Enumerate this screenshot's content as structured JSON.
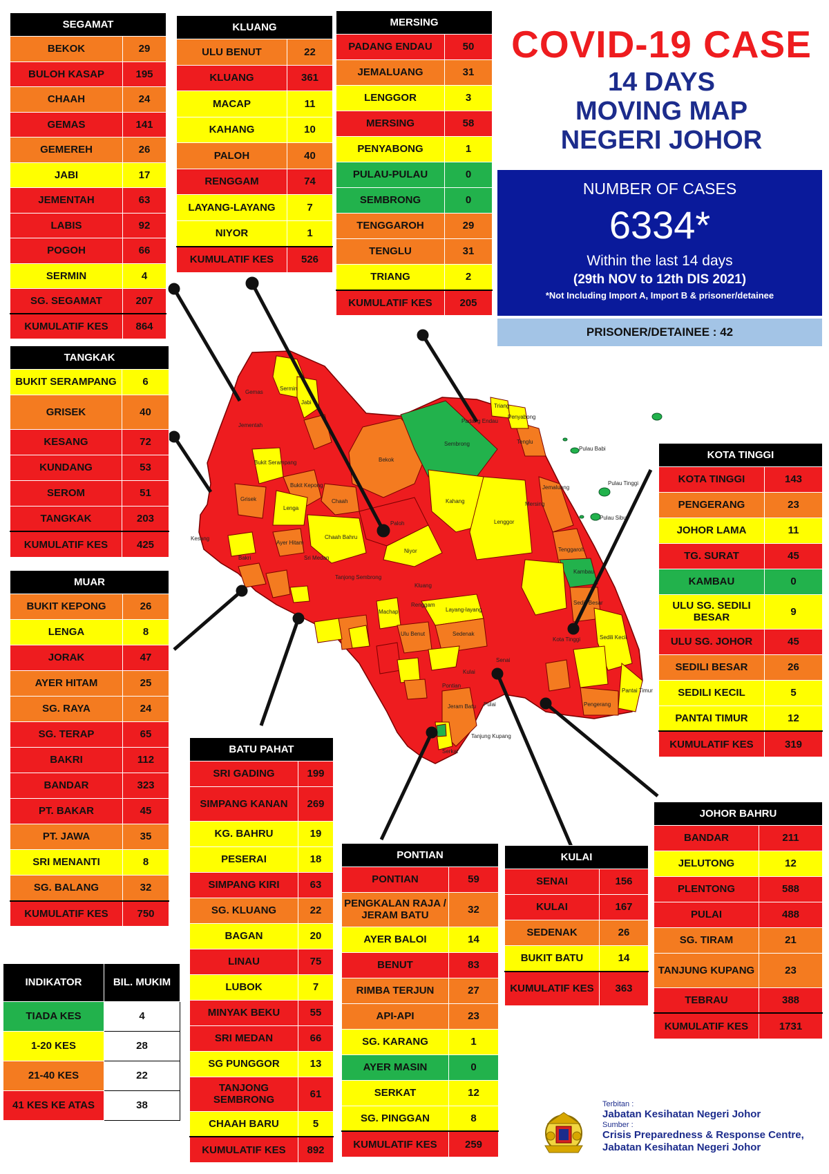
{
  "header": {
    "title_line1": "COVID-19 CASE",
    "title_line2": "14 DAYS",
    "title_line3": "MOVING MAP",
    "title_line4": "NEGERI JOHOR"
  },
  "summary": {
    "label": "NUMBER OF CASES",
    "total": "6334*",
    "within": "Within the last 14 days",
    "range": "(29th NOV to 12th DIS 2021)",
    "note": "*Not Including Import A, Import B & prisoner/detainee",
    "prisoner": "PRISONER/DETAINEE : 42"
  },
  "colors": {
    "red": "#ee1c1f",
    "orange": "#f47b20",
    "yellow": "#ffff00",
    "green": "#22b24c",
    "navy": "#0a1a9b",
    "title_blue": "#1c2c8c"
  },
  "districts": {
    "segamat": {
      "title": "SEGAMAT",
      "rows": [
        {
          "name": "BEKOK",
          "value": "29",
          "level": "orange"
        },
        {
          "name": "BULOH KASAP",
          "value": "195",
          "level": "red"
        },
        {
          "name": "CHAAH",
          "value": "24",
          "level": "orange"
        },
        {
          "name": "GEMAS",
          "value": "141",
          "level": "red"
        },
        {
          "name": "GEMEREH",
          "value": "26",
          "level": "orange"
        },
        {
          "name": "JABI",
          "value": "17",
          "level": "yellow"
        },
        {
          "name": "JEMENTAH",
          "value": "63",
          "level": "red"
        },
        {
          "name": "LABIS",
          "value": "92",
          "level": "red"
        },
        {
          "name": "POGOH",
          "value": "66",
          "level": "red"
        },
        {
          "name": "SERMIN",
          "value": "4",
          "level": "yellow"
        },
        {
          "name": "SG. SEGAMAT",
          "value": "207",
          "level": "red"
        },
        {
          "name": "KUMULATIF KES",
          "value": "864",
          "level": "red"
        }
      ]
    },
    "kluang": {
      "title": "KLUANG",
      "rows": [
        {
          "name": "ULU BENUT",
          "value": "22",
          "level": "orange"
        },
        {
          "name": "KLUANG",
          "value": "361",
          "level": "red"
        },
        {
          "name": "MACAP",
          "value": "11",
          "level": "yellow"
        },
        {
          "name": "KAHANG",
          "value": "10",
          "level": "yellow"
        },
        {
          "name": "PALOH",
          "value": "40",
          "level": "orange"
        },
        {
          "name": "RENGGAM",
          "value": "74",
          "level": "red"
        },
        {
          "name": "LAYANG-LAYANG",
          "value": "7",
          "level": "yellow"
        },
        {
          "name": "NIYOR",
          "value": "1",
          "level": "yellow"
        },
        {
          "name": "KUMULATIF KES",
          "value": "526",
          "level": "red"
        }
      ]
    },
    "mersing": {
      "title": "MERSING",
      "rows": [
        {
          "name": "PADANG ENDAU",
          "value": "50",
          "level": "red"
        },
        {
          "name": "JEMALUANG",
          "value": "31",
          "level": "orange"
        },
        {
          "name": "LENGGOR",
          "value": "3",
          "level": "yellow"
        },
        {
          "name": "MERSING",
          "value": "58",
          "level": "red"
        },
        {
          "name": "PENYABONG",
          "value": "1",
          "level": "yellow"
        },
        {
          "name": "PULAU-PULAU",
          "value": "0",
          "level": "green"
        },
        {
          "name": "SEMBRONG",
          "value": "0",
          "level": "green"
        },
        {
          "name": "TENGGAROH",
          "value": "29",
          "level": "orange"
        },
        {
          "name": "TENGLU",
          "value": "31",
          "level": "orange"
        },
        {
          "name": "TRIANG",
          "value": "2",
          "level": "yellow"
        },
        {
          "name": "KUMULATIF KES",
          "value": "205",
          "level": "red"
        }
      ]
    },
    "tangkak": {
      "title": "TANGKAK",
      "rows": [
        {
          "name": "BUKIT SERAMPANG",
          "value": "6",
          "level": "yellow"
        },
        {
          "name": "GRISEK",
          "value": "40",
          "level": "orange"
        },
        {
          "name": "KESANG",
          "value": "72",
          "level": "red"
        },
        {
          "name": "KUNDANG",
          "value": "53",
          "level": "red"
        },
        {
          "name": "SEROM",
          "value": "51",
          "level": "red"
        },
        {
          "name": "TANGKAK",
          "value": "203",
          "level": "red"
        },
        {
          "name": "KUMULATIF KES",
          "value": "425",
          "level": "red"
        }
      ]
    },
    "muar": {
      "title": "MUAR",
      "rows": [
        {
          "name": "BUKIT KEPONG",
          "value": "26",
          "level": "orange"
        },
        {
          "name": "LENGA",
          "value": "8",
          "level": "yellow"
        },
        {
          "name": "JORAK",
          "value": "47",
          "level": "red"
        },
        {
          "name": "AYER HITAM",
          "value": "25",
          "level": "orange"
        },
        {
          "name": "SG. RAYA",
          "value": "24",
          "level": "orange"
        },
        {
          "name": "SG. TERAP",
          "value": "65",
          "level": "red"
        },
        {
          "name": "BAKRI",
          "value": "112",
          "level": "red"
        },
        {
          "name": "BANDAR",
          "value": "323",
          "level": "red"
        },
        {
          "name": "PT. BAKAR",
          "value": "45",
          "level": "red"
        },
        {
          "name": "PT. JAWA",
          "value": "35",
          "level": "orange"
        },
        {
          "name": "SRI MENANTI",
          "value": "8",
          "level": "yellow"
        },
        {
          "name": "SG. BALANG",
          "value": "32",
          "level": "orange"
        },
        {
          "name": "KUMULATIF KES",
          "value": "750",
          "level": "red"
        }
      ]
    },
    "kota_tinggi": {
      "title": "KOTA TINGGI",
      "rows": [
        {
          "name": "KOTA TINGGI",
          "value": "143",
          "level": "red"
        },
        {
          "name": "PENGERANG",
          "value": "23",
          "level": "orange"
        },
        {
          "name": "JOHOR LAMA",
          "value": "11",
          "level": "yellow"
        },
        {
          "name": "TG. SURAT",
          "value": "45",
          "level": "red"
        },
        {
          "name": "KAMBAU",
          "value": "0",
          "level": "green"
        },
        {
          "name": "ULU SG. SEDILI BESAR",
          "value": "9",
          "level": "yellow"
        },
        {
          "name": "ULU SG. JOHOR",
          "value": "45",
          "level": "red"
        },
        {
          "name": "SEDILI BESAR",
          "value": "26",
          "level": "orange"
        },
        {
          "name": "SEDILI KECIL",
          "value": "5",
          "level": "yellow"
        },
        {
          "name": "PANTAI TIMUR",
          "value": "12",
          "level": "yellow"
        },
        {
          "name": "KUMULATIF KES",
          "value": "319",
          "level": "red"
        }
      ]
    },
    "batu_pahat": {
      "title": "BATU PAHAT",
      "rows": [
        {
          "name": "SRI GADING",
          "value": "199",
          "level": "red"
        },
        {
          "name": "SIMPANG KANAN",
          "value": "269",
          "level": "red"
        },
        {
          "name": "KG. BAHRU",
          "value": "19",
          "level": "yellow"
        },
        {
          "name": "PESERAI",
          "value": "18",
          "level": "yellow"
        },
        {
          "name": "SIMPANG KIRI",
          "value": "63",
          "level": "red"
        },
        {
          "name": "SG. KLUANG",
          "value": "22",
          "level": "orange"
        },
        {
          "name": "BAGAN",
          "value": "20",
          "level": "yellow"
        },
        {
          "name": "LINAU",
          "value": "75",
          "level": "red"
        },
        {
          "name": "LUBOK",
          "value": "7",
          "level": "yellow"
        },
        {
          "name": "MINYAK BEKU",
          "value": "55",
          "level": "red"
        },
        {
          "name": "SRI MEDAN",
          "value": "66",
          "level": "red"
        },
        {
          "name": "SG PUNGGOR",
          "value": "13",
          "level": "yellow"
        },
        {
          "name": "TANJONG SEMBRONG",
          "value": "61",
          "level": "red"
        },
        {
          "name": "CHAAH BARU",
          "value": "5",
          "level": "yellow"
        },
        {
          "name": "KUMULATIF KES",
          "value": "892",
          "level": "red"
        }
      ]
    },
    "pontian": {
      "title": "PONTIAN",
      "rows": [
        {
          "name": "PONTIAN",
          "value": "59",
          "level": "red"
        },
        {
          "name": "PENGKALAN RAJA / JERAM BATU",
          "value": "32",
          "level": "orange"
        },
        {
          "name": "AYER BALOI",
          "value": "14",
          "level": "yellow"
        },
        {
          "name": "BENUT",
          "value": "83",
          "level": "red"
        },
        {
          "name": "RIMBA TERJUN",
          "value": "27",
          "level": "orange"
        },
        {
          "name": "API-API",
          "value": "23",
          "level": "orange"
        },
        {
          "name": "SG. KARANG",
          "value": "1",
          "level": "yellow"
        },
        {
          "name": "AYER MASIN",
          "value": "0",
          "level": "green"
        },
        {
          "name": "SERKAT",
          "value": "12",
          "level": "yellow"
        },
        {
          "name": "SG. PINGGAN",
          "value": "8",
          "level": "yellow"
        },
        {
          "name": "KUMULATIF KES",
          "value": "259",
          "level": "red"
        }
      ]
    },
    "kulai": {
      "title": "KULAI",
      "rows": [
        {
          "name": "SENAI",
          "value": "156",
          "level": "red"
        },
        {
          "name": "KULAI",
          "value": "167",
          "level": "red"
        },
        {
          "name": "SEDENAK",
          "value": "26",
          "level": "orange"
        },
        {
          "name": "BUKIT BATU",
          "value": "14",
          "level": "yellow"
        },
        {
          "name": "KUMULATIF KES",
          "value": "363",
          "level": "red"
        }
      ]
    },
    "johor_bahru": {
      "title": "JOHOR BAHRU",
      "rows": [
        {
          "name": "BANDAR",
          "value": "211",
          "level": "red"
        },
        {
          "name": "JELUTONG",
          "value": "12",
          "level": "yellow"
        },
        {
          "name": "PLENTONG",
          "value": "588",
          "level": "red"
        },
        {
          "name": "PULAI",
          "value": "488",
          "level": "red"
        },
        {
          "name": "SG. TIRAM",
          "value": "21",
          "level": "orange"
        },
        {
          "name": "TANJUNG KUPANG",
          "value": "23",
          "level": "orange"
        },
        {
          "name": "TEBRAU",
          "value": "388",
          "level": "red"
        },
        {
          "name": "KUMULATIF KES",
          "value": "1731",
          "level": "red"
        }
      ]
    }
  },
  "legend": {
    "header_indicator": "INDIKATOR",
    "header_count": "BIL. MUKIM",
    "rows": [
      {
        "label": "TIADA KES",
        "value": "4",
        "level": "green"
      },
      {
        "label": "1-20 KES",
        "value": "28",
        "level": "yellow"
      },
      {
        "label": "21-40 KES",
        "value": "22",
        "level": "orange"
      },
      {
        "label": "41 KES KE ATAS",
        "value": "38",
        "level": "red"
      }
    ]
  },
  "map_labels": {
    "gemas": "Gemas",
    "sermin": "Sermin",
    "jabi": "Jabi",
    "buloh_kasap": "Buloh Kasap",
    "sungai_segamat": "Sungai Segamat",
    "jementah": "Jementah",
    "pogoh": "Pogoh",
    "bukit_serampang": "Bukit Serampang",
    "bekok": "Bekok",
    "sembrong": "Sembrong",
    "tangkak": "Tangkak",
    "bukit_kepong": "Bukit Kepong",
    "grisek": "Grisek",
    "lenga": "Lenga",
    "chaah": "Chaah",
    "labis": "Labis",
    "paloh": "Paloh",
    "kahang": "Kahang",
    "lenggor": "Lenggor",
    "niyor": "Niyor",
    "kluang": "Kluang",
    "chaah_bahru": "Chaah Bahru",
    "jorak": "Jorak",
    "kesang": "Kesang",
    "serom": "Serom",
    "bakri": "Bakri",
    "ayer_hitam": "Ayer Hitam",
    "sri_medan": "Sri Medan",
    "tanjong_sembrong": "Tanjong Sembrong",
    "renggam": "Renggam",
    "macap": "Machap",
    "layang_layang": "Layang-layang",
    "ulu_benut": "Ulu Benut",
    "sedenak": "Sedenak",
    "kulai": "Kulai",
    "senai": "Senai",
    "pulai": "Pulai",
    "tebrau": "Tebrau",
    "plentong": "Plentong",
    "pontian": "Pontian",
    "jeram_batu": "Jeram Batu",
    "serkat": "Serkat",
    "tanjung_kupang": "Tanjung Kupang",
    "kota_tinggi": "Kota Tinggi",
    "kambau": "Kambau",
    "sedili_kecil": "Sedili Kecil",
    "sedili_besar": "Sedili Besar",
    "mersing": "Mersing",
    "jemaluang": "Jemaluang",
    "tenggaroh": "Tenggaroh",
    "tenglu": "Tenglu",
    "penyabong": "Penyabong",
    "triang": "Triang",
    "padang_endau": "Padang Endau",
    "pulau_tinggi": "Pulau Tinggi",
    "pulau_sibu": "Pulau Sibu",
    "pulau_babi": "Pulau Babi",
    "pengerang": "Pengerang",
    "pantai_timur": "Pantai Timur",
    "tanjung_surat": "Tanjung Surat",
    "ulu_sg_johor": "Ulu Sungai Johor",
    "ulu_sg_sedili_besar": "Ulu Sungai Sedili Besar",
    "batu_pahat_town": "Bandar",
    "linau": "Linau",
    "simpang_kanan": "Simpang Kanan",
    "sri_gading": "Sri Gading",
    "lubok": "Lubok",
    "sg_balang": "Sungai Balang",
    "sri_menanti": "Sri Menanti",
    "pt_jawa": "Parit Jawa",
    "pt_bakar": "Parit Bakar",
    "bagan": "Bagan",
    "minyak_beku": "Minyak Beku",
    "sg_punggor": "Sungai Punggor",
    "sg_kluang": "Sungai Kluang",
    "benut": "Benut",
    "ayer_baloi": "Ayer Baloi",
    "api_api": "Api-api",
    "bukit_batu": "Bukit Batu"
  },
  "credit": {
    "publisher_label": "Terbitan :",
    "publisher": "Jabatan Kesihatan Negeri Johor",
    "source_label": "Sumber :",
    "source_line1": "Crisis Preparedness & Response Centre,",
    "source_line2": "Jabatan Kesihatan Negeri Johor"
  }
}
